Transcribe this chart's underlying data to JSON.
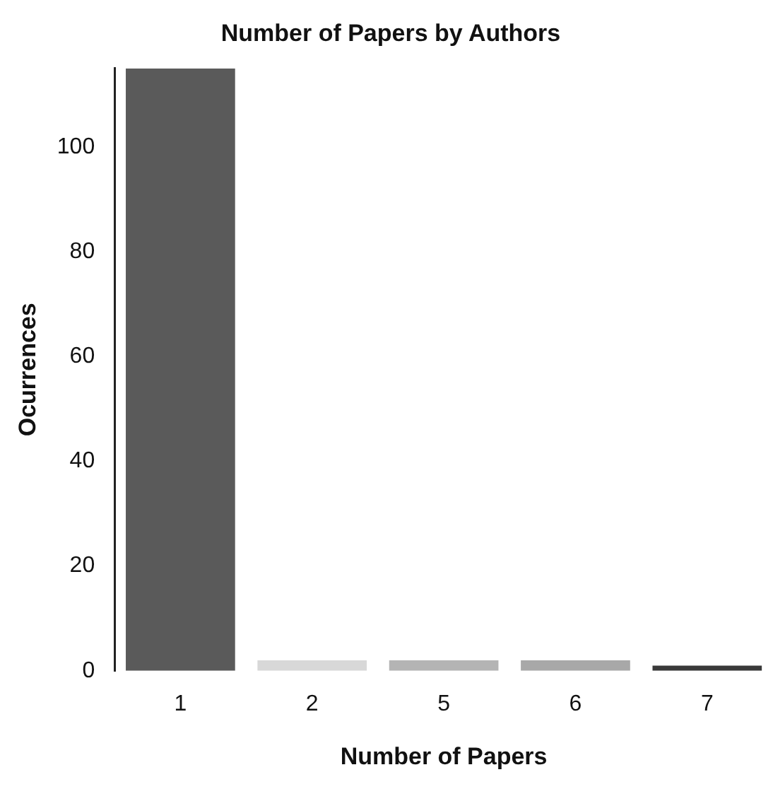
{
  "chart_data": {
    "type": "bar",
    "title": "Number of Papers by Authors",
    "xlabel": "Number of Papers",
    "ylabel": "Ocurrences",
    "categories": [
      "1",
      "2",
      "5",
      "6",
      "7"
    ],
    "values": [
      115,
      2,
      2,
      2,
      1
    ],
    "colors": [
      "#5a5a5a",
      "#d8d8d8",
      "#b4b4b4",
      "#a8a8a8",
      "#3a3a3a"
    ],
    "ylim": [
      0,
      115
    ],
    "yticks": [
      0,
      20,
      40,
      60,
      80,
      100
    ],
    "grid": false,
    "legend": false
  }
}
